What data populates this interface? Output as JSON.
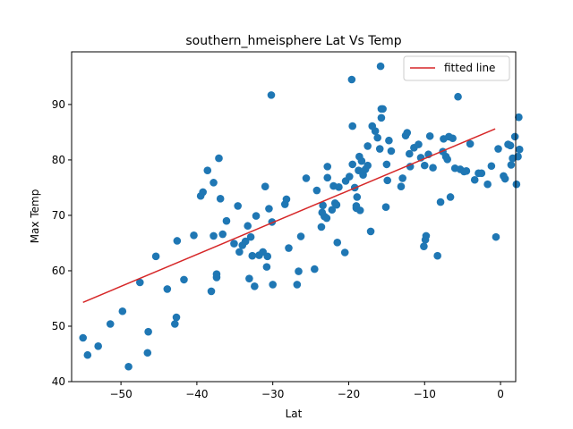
{
  "chart_data": {
    "type": "scatter",
    "title": "southern_hmeisphere Lat Vs Temp",
    "xlabel": "Lat",
    "ylabel": "Max Temp",
    "xlim": [
      -56.5,
      2.0
    ],
    "ylim": [
      40,
      99.5
    ],
    "xticks": [
      -50,
      -40,
      -30,
      -20,
      -10,
      0
    ],
    "yticks": [
      40,
      50,
      60,
      70,
      80,
      90
    ],
    "grid": false,
    "legend": {
      "position": "top-right",
      "entries": [
        "fitted line"
      ]
    },
    "colors": {
      "points": "#1f77b4",
      "line": "#d62728"
    },
    "fitted_line": {
      "name": "fitted line",
      "x": [
        -55.0,
        -0.7
      ],
      "y": [
        54.3,
        85.6
      ]
    },
    "points": [
      [
        -55.0,
        47.9
      ],
      [
        -54.4,
        44.8
      ],
      [
        -53.0,
        46.4
      ],
      [
        -51.4,
        50.4
      ],
      [
        -49.8,
        52.7
      ],
      [
        -49.0,
        42.7
      ],
      [
        -47.5,
        57.9
      ],
      [
        -46.4,
        49.0
      ],
      [
        -46.5,
        45.2
      ],
      [
        -45.4,
        62.6
      ],
      [
        -43.9,
        56.7
      ],
      [
        -42.9,
        50.4
      ],
      [
        -42.7,
        51.6
      ],
      [
        -42.6,
        65.4
      ],
      [
        -41.7,
        58.4
      ],
      [
        -40.4,
        66.4
      ],
      [
        -39.5,
        73.5
      ],
      [
        -39.2,
        74.2
      ],
      [
        -38.6,
        78.1
      ],
      [
        -38.1,
        56.3
      ],
      [
        -37.8,
        75.9
      ],
      [
        -37.8,
        66.3
      ],
      [
        -37.4,
        58.8
      ],
      [
        -37.4,
        59.4
      ],
      [
        -37.1,
        80.3
      ],
      [
        -36.9,
        73.0
      ],
      [
        -36.6,
        66.6
      ],
      [
        -36.1,
        69.0
      ],
      [
        -35.1,
        64.9
      ],
      [
        -34.6,
        71.7
      ],
      [
        -34.4,
        63.4
      ],
      [
        -34.0,
        64.6
      ],
      [
        -33.6,
        65.3
      ],
      [
        -33.3,
        68.1
      ],
      [
        -33.1,
        58.6
      ],
      [
        -32.9,
        66.1
      ],
      [
        -32.7,
        62.7
      ],
      [
        -32.4,
        57.2
      ],
      [
        -32.2,
        69.9
      ],
      [
        -31.8,
        62.8
      ],
      [
        -31.3,
        63.4
      ],
      [
        -31.0,
        75.2
      ],
      [
        -30.8,
        60.7
      ],
      [
        -30.7,
        62.6
      ],
      [
        -30.5,
        71.2
      ],
      [
        -30.2,
        91.7
      ],
      [
        -30.1,
        68.8
      ],
      [
        -30.0,
        57.5
      ],
      [
        -28.4,
        72.0
      ],
      [
        -28.2,
        72.9
      ],
      [
        -27.9,
        64.1
      ],
      [
        -26.8,
        57.5
      ],
      [
        -26.6,
        59.9
      ],
      [
        -26.3,
        66.2
      ],
      [
        -25.6,
        76.7
      ],
      [
        -24.5,
        60.3
      ],
      [
        -24.2,
        74.5
      ],
      [
        -23.6,
        67.9
      ],
      [
        -23.5,
        70.5
      ],
      [
        -23.4,
        71.8
      ],
      [
        -23.2,
        69.8
      ],
      [
        -22.9,
        69.5
      ],
      [
        -22.8,
        78.8
      ],
      [
        -22.8,
        76.8
      ],
      [
        -22.2,
        71.0
      ],
      [
        -22.0,
        75.3
      ],
      [
        -21.8,
        72.2
      ],
      [
        -21.6,
        71.9
      ],
      [
        -21.5,
        65.1
      ],
      [
        -21.3,
        75.1
      ],
      [
        -20.5,
        63.3
      ],
      [
        -20.4,
        76.2
      ],
      [
        -19.9,
        77.0
      ],
      [
        -19.6,
        94.5
      ],
      [
        -19.5,
        79.2
      ],
      [
        -19.5,
        86.1
      ],
      [
        -19.2,
        75.0
      ],
      [
        -19.0,
        71.3
      ],
      [
        -19.0,
        71.7
      ],
      [
        -18.9,
        73.3
      ],
      [
        -18.7,
        78.1
      ],
      [
        -18.6,
        80.6
      ],
      [
        -18.5,
        70.9
      ],
      [
        -18.3,
        79.8
      ],
      [
        -18.1,
        77.3
      ],
      [
        -17.8,
        78.3
      ],
      [
        -17.5,
        82.5
      ],
      [
        -17.5,
        79.0
      ],
      [
        -17.1,
        67.1
      ],
      [
        -16.9,
        86.1
      ],
      [
        -16.5,
        85.2
      ],
      [
        -16.2,
        84.0
      ],
      [
        -15.9,
        82.0
      ],
      [
        -15.8,
        96.9
      ],
      [
        -15.7,
        87.6
      ],
      [
        -15.7,
        89.2
      ],
      [
        -15.5,
        89.2
      ],
      [
        -15.1,
        71.5
      ],
      [
        -15.0,
        79.2
      ],
      [
        -14.9,
        76.3
      ],
      [
        -14.7,
        83.5
      ],
      [
        -14.4,
        81.6
      ],
      [
        -13.1,
        75.2
      ],
      [
        -12.9,
        76.7
      ],
      [
        -12.5,
        84.4
      ],
      [
        -12.3,
        84.9
      ],
      [
        -12.0,
        81.1
      ],
      [
        -11.9,
        78.8
      ],
      [
        -11.4,
        82.2
      ],
      [
        -10.8,
        82.8
      ],
      [
        -10.5,
        80.4
      ],
      [
        -10.1,
        64.4
      ],
      [
        -10.0,
        79.0
      ],
      [
        -9.9,
        65.6
      ],
      [
        -9.8,
        66.3
      ],
      [
        -9.5,
        81.0
      ],
      [
        -9.3,
        84.3
      ],
      [
        -8.9,
        78.6
      ],
      [
        -8.3,
        62.7
      ],
      [
        -7.9,
        72.4
      ],
      [
        -7.6,
        81.5
      ],
      [
        -7.5,
        83.8
      ],
      [
        -7.2,
        80.6
      ],
      [
        -7.0,
        80.1
      ],
      [
        -6.8,
        84.2
      ],
      [
        -6.6,
        73.3
      ],
      [
        -6.3,
        83.9
      ],
      [
        -6.0,
        78.5
      ],
      [
        -5.6,
        91.4
      ],
      [
        -5.3,
        78.3
      ],
      [
        -4.8,
        77.9
      ],
      [
        -4.5,
        78.0
      ],
      [
        -4.0,
        82.9
      ],
      [
        -3.4,
        76.4
      ],
      [
        -2.9,
        77.6
      ],
      [
        -2.5,
        77.6
      ],
      [
        -1.7,
        75.6
      ],
      [
        -1.2,
        78.9
      ],
      [
        -0.6,
        66.1
      ],
      [
        -0.3,
        82.0
      ],
      [
        0.4,
        77.1
      ],
      [
        0.6,
        76.6
      ],
      [
        1.0,
        82.8
      ],
      [
        1.3,
        82.6
      ],
      [
        1.4,
        79.1
      ],
      [
        1.6,
        80.3
      ],
      [
        1.9,
        84.2
      ],
      [
        2.1,
        75.6
      ],
      [
        2.3,
        80.6
      ],
      [
        2.4,
        87.7
      ],
      [
        2.5,
        81.9
      ]
    ]
  }
}
